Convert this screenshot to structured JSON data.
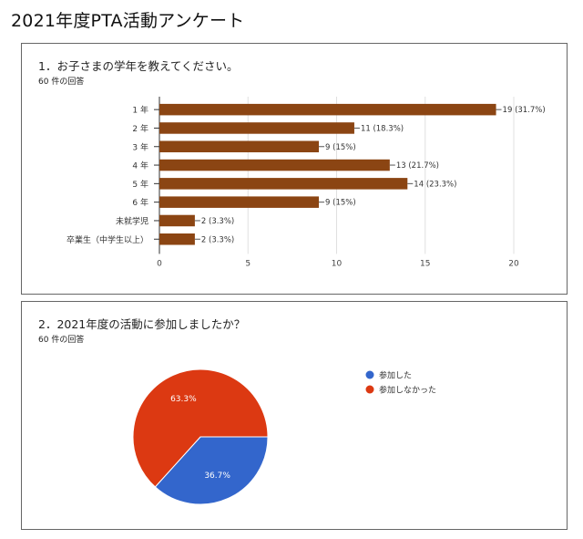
{
  "page_title": "2021年度PTA活動アンケート",
  "q1": {
    "title": "1．お子さまの学年を教えてください。",
    "count": "60 件の回答"
  },
  "q2": {
    "title": "2．2021年度の活動に参加しましたか？",
    "count": "60 件の回答"
  },
  "chart_data": [
    {
      "type": "bar",
      "orientation": "horizontal",
      "categories": [
        "1 年",
        "2 年",
        "3 年",
        "4 年",
        "5 年",
        "6 年",
        "未就学児",
        "卒業生（中学生以上）"
      ],
      "values": [
        19,
        11,
        9,
        13,
        14,
        9,
        2,
        2
      ],
      "data_labels": [
        "19 (31.7%)",
        "11 (18.3%)",
        "9 (15%)",
        "13 (21.7%)",
        "14 (23.3%)",
        "9 (15%)",
        "2 (3.3%)",
        "2 (3.3%)"
      ],
      "xlim": [
        0,
        20
      ],
      "xticks": [
        0,
        5,
        10,
        15,
        20
      ],
      "grid": true,
      "color": "#8B4513"
    },
    {
      "type": "pie",
      "categories": [
        "参加した",
        "参加しなかった"
      ],
      "values": [
        36.7,
        63.3
      ],
      "data_labels": [
        "36.7%",
        "63.3%"
      ],
      "colors": [
        "#3366cc",
        "#dc3912"
      ],
      "legend": "right"
    }
  ]
}
